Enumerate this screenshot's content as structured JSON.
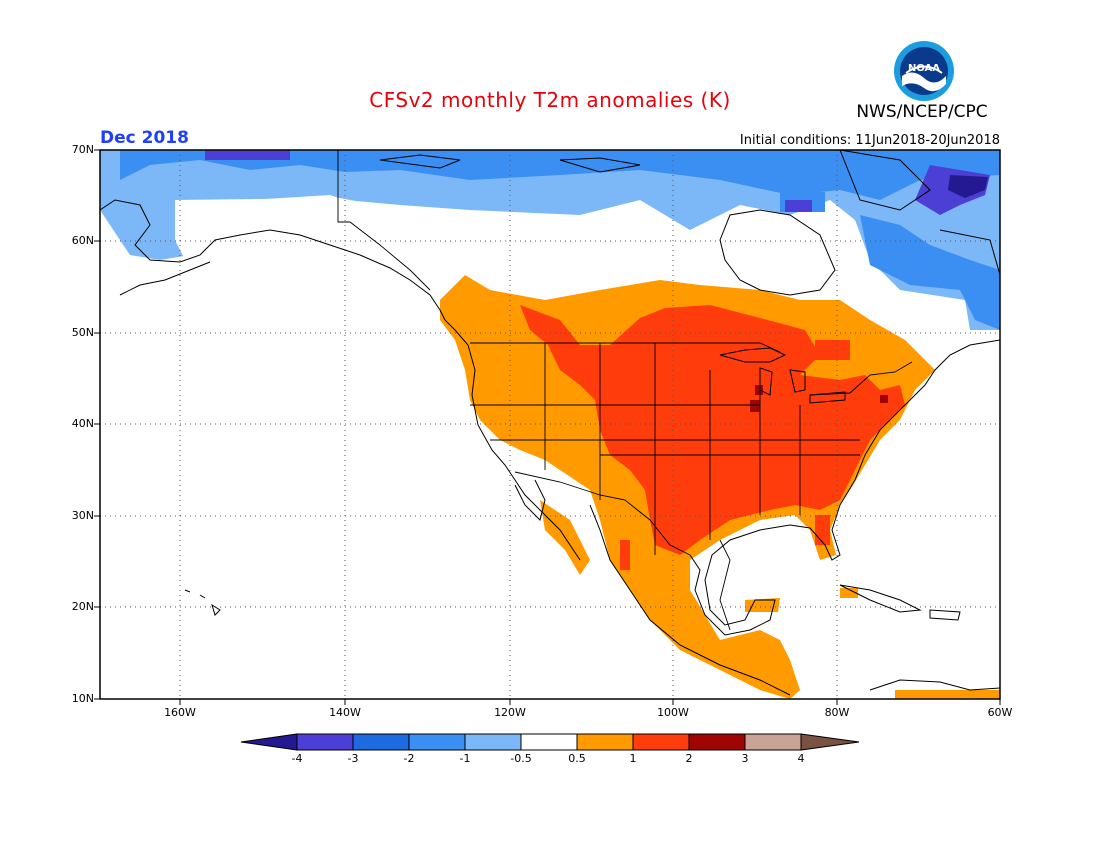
{
  "header": {
    "title": "CFSv2 monthly T2m anomalies (K)",
    "agency": "NWS/NCEP/CPC",
    "logo_text": "NOAA",
    "valid_month": "Dec 2018",
    "initial_conditions": "Initial conditions: 11Jun2018-20Jun2018"
  },
  "map": {
    "projection": "lat-lon",
    "lon_range": [
      -172,
      -60
    ],
    "lat_range": [
      10,
      70
    ],
    "grid": "dotted",
    "lat_labels": [
      "70N",
      "60N",
      "50N",
      "40N",
      "30N",
      "20N",
      "10N"
    ],
    "lon_labels": [
      "160W",
      "140W",
      "120W",
      "100W",
      "80W",
      "60W"
    ]
  },
  "colorbar": {
    "labels": [
      "-4",
      "-3",
      "-2",
      "-1",
      "-0.5",
      "0.5",
      "1",
      "2",
      "3",
      "4"
    ],
    "colors": {
      "lt_m4": "#241990",
      "m4_m3": "#4c3fd6",
      "m3_m2": "#1e6ae0",
      "m2_m1": "#3c8ff2",
      "m1_m05": "#7cb7f7",
      "m05_05": "#ffffff",
      "p05_1": "#ff9a00",
      "p1_2": "#ff3c0c",
      "p2_3": "#a00505",
      "p3_4": "#c9a394",
      "gt_4": "#7a5242"
    }
  }
}
